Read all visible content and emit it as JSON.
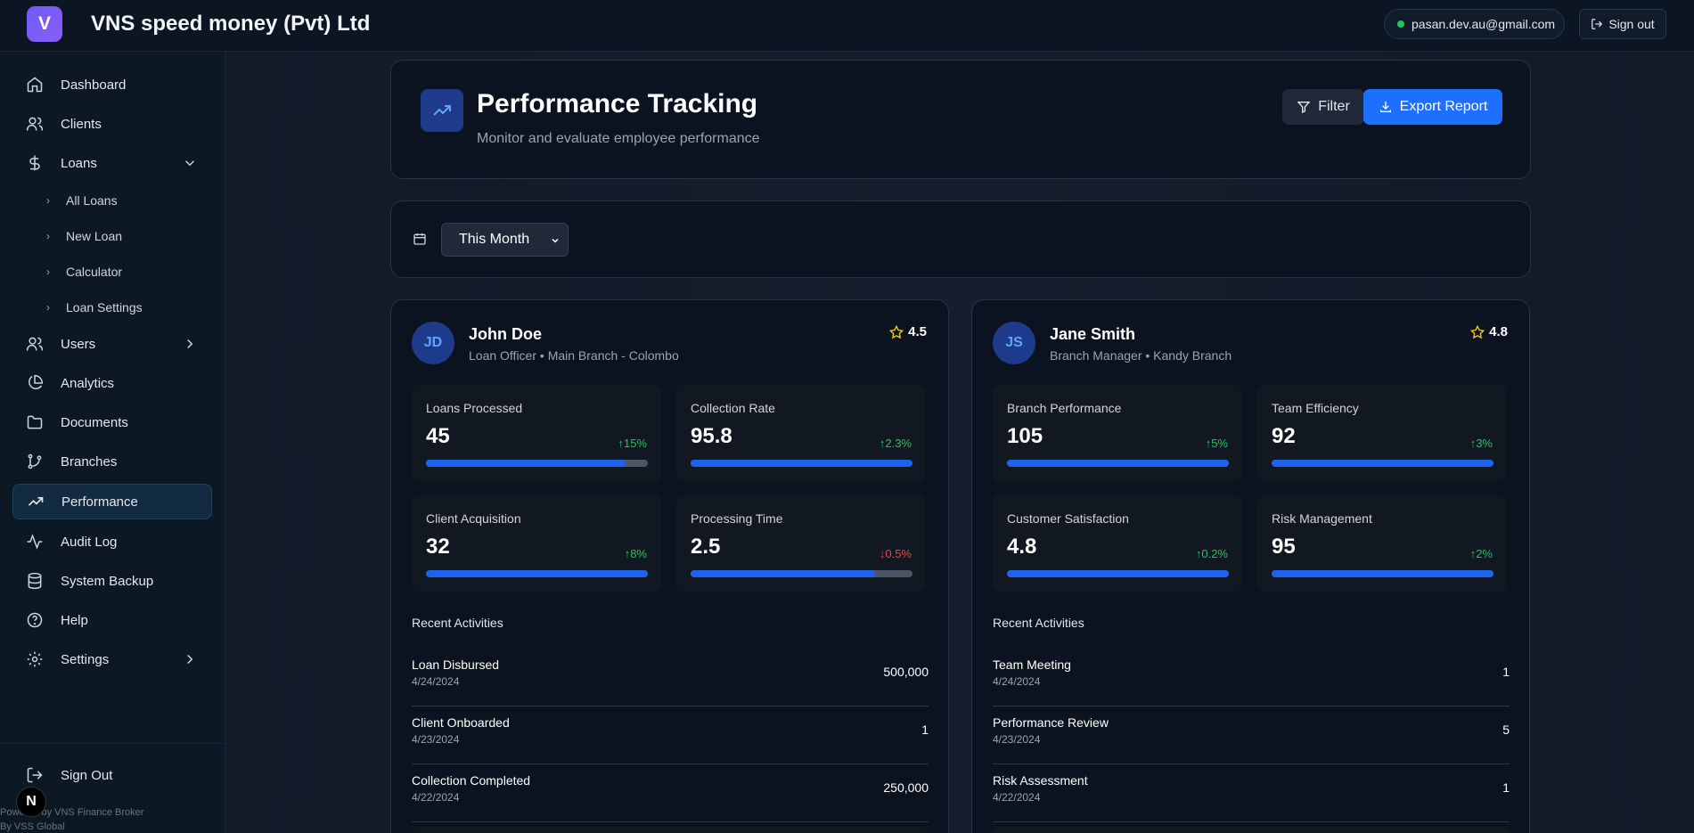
{
  "app": {
    "logo_letter": "V",
    "title": "VNS speed money (Pvt) Ltd"
  },
  "topbar": {
    "email": "pasan.dev.au@gmail.com",
    "signout": "Sign out",
    "status_color": "#22c55e"
  },
  "sidebar": {
    "items": [
      {
        "label": "Dashboard",
        "icon": "home-icon"
      },
      {
        "label": "Clients",
        "icon": "users-icon"
      },
      {
        "label": "Loans",
        "icon": "dollar-icon"
      },
      {
        "label": "Users",
        "icon": "users-icon"
      },
      {
        "label": "Analytics",
        "icon": "pie-chart-icon"
      },
      {
        "label": "Documents",
        "icon": "folder-icon"
      },
      {
        "label": "Branches",
        "icon": "git-branch-icon"
      },
      {
        "label": "Performance",
        "icon": "trending-up-icon",
        "active": true
      },
      {
        "label": "Audit Log",
        "icon": "activity-icon"
      },
      {
        "label": "System Backup",
        "icon": "database-icon"
      },
      {
        "label": "Help",
        "icon": "help-circle-icon"
      },
      {
        "label": "Settings",
        "icon": "gear-icon"
      }
    ],
    "loans_sub": [
      "All Loans",
      "New Loan",
      "Calculator",
      "Loan Settings"
    ],
    "signout": "Sign Out",
    "footer_line1": "Powered by VNS Finance Broker",
    "footer_line2": "By VSS Global",
    "badge_letter": "N"
  },
  "header": {
    "title": "Performance Tracking",
    "subtitle": "Monitor and evaluate employee performance",
    "filter": "Filter",
    "export": "Export Report"
  },
  "period": {
    "selected": "This Month"
  },
  "employees": [
    {
      "initials": "JD",
      "name": "John Doe",
      "role": "Loan Officer • Main Branch - Colombo",
      "rating": "4.5",
      "metrics": [
        {
          "label": "Loans Processed",
          "value": "45",
          "trend": "↑15%",
          "dir": "up",
          "progress": 0.9
        },
        {
          "label": "Collection Rate",
          "value": "95.8",
          "trend": "↑2.3%",
          "dir": "up",
          "progress": 1.0
        },
        {
          "label": "Client Acquisition",
          "value": "32",
          "trend": "↑8%",
          "dir": "up",
          "progress": 1.0
        },
        {
          "label": "Processing Time",
          "value": "2.5",
          "trend": "↓0.5%",
          "dir": "down",
          "progress": 0.83
        }
      ],
      "recent_title": "Recent Activities",
      "activities": [
        {
          "name": "Loan Disbursed",
          "date": "4/24/2024",
          "value": "500,000"
        },
        {
          "name": "Client Onboarded",
          "date": "4/23/2024",
          "value": "1"
        },
        {
          "name": "Collection Completed",
          "date": "4/22/2024",
          "value": "250,000"
        }
      ]
    },
    {
      "initials": "JS",
      "name": "Jane Smith",
      "role": "Branch Manager • Kandy Branch",
      "rating": "4.8",
      "metrics": [
        {
          "label": "Branch Performance",
          "value": "105",
          "trend": "↑5%",
          "dir": "up",
          "progress": 1.0
        },
        {
          "label": "Team Efficiency",
          "value": "92",
          "trend": "↑3%",
          "dir": "up",
          "progress": 1.0
        },
        {
          "label": "Customer Satisfaction",
          "value": "4.8",
          "trend": "↑0.2%",
          "dir": "up",
          "progress": 1.0
        },
        {
          "label": "Risk Management",
          "value": "95",
          "trend": "↑2%",
          "dir": "up",
          "progress": 1.0
        }
      ],
      "recent_title": "Recent Activities",
      "activities": [
        {
          "name": "Team Meeting",
          "date": "4/24/2024",
          "value": "1"
        },
        {
          "name": "Performance Review",
          "date": "4/23/2024",
          "value": "5"
        },
        {
          "name": "Risk Assessment",
          "date": "4/22/2024",
          "value": "1"
        }
      ]
    }
  ]
}
